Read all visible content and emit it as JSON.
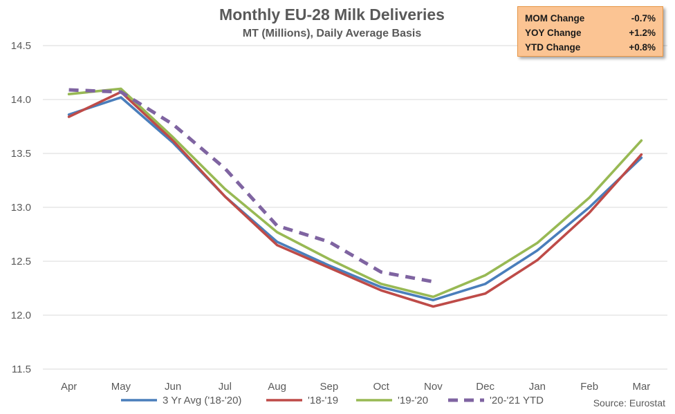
{
  "chart_data": {
    "type": "line",
    "title": "Monthly EU-28 Milk Deliveries",
    "subtitle": "MT (Millions), Daily Average Basis",
    "categories": [
      "Apr",
      "May",
      "Jun",
      "Jul",
      "Aug",
      "Sep",
      "Oct",
      "Nov",
      "Dec",
      "Jan",
      "Feb",
      "Mar"
    ],
    "ylim": [
      11.5,
      14.5
    ],
    "yticks": [
      "11.5",
      "12.0",
      "12.5",
      "13.0",
      "13.5",
      "14.0",
      "14.5"
    ],
    "grid": true,
    "legend_position": "bottom",
    "series": [
      {
        "name": "3 Yr Avg ('18-'20)",
        "color": "#4a7ebb",
        "dash": "solid",
        "values": [
          13.86,
          14.02,
          13.6,
          13.1,
          12.68,
          12.46,
          12.26,
          12.14,
          12.29,
          12.6,
          13.0,
          13.46
        ]
      },
      {
        "name": "'18-'19",
        "color": "#be4b48",
        "dash": "solid",
        "values": [
          13.84,
          14.07,
          13.62,
          13.1,
          12.65,
          12.44,
          12.23,
          12.08,
          12.2,
          12.51,
          12.95,
          13.49
        ]
      },
      {
        "name": "'19-'20",
        "color": "#98b954",
        "dash": "solid",
        "values": [
          14.05,
          14.1,
          13.65,
          13.17,
          12.77,
          12.52,
          12.29,
          12.17,
          12.37,
          12.67,
          13.09,
          13.62
        ]
      },
      {
        "name": "'20-'21 YTD",
        "color": "#7f64a1",
        "dash": "dashed",
        "values": [
          14.09,
          14.07,
          13.77,
          13.36,
          12.83,
          12.68,
          12.4,
          12.31,
          null,
          null,
          null,
          null
        ]
      }
    ]
  },
  "stats_box": {
    "rows": [
      {
        "label": "MOM Change",
        "value": "-0.7%"
      },
      {
        "label": "YOY Change",
        "value": "+1.2%"
      },
      {
        "label": "YTD Change",
        "value": "+0.8%"
      }
    ]
  },
  "source": "Source: Eurostat",
  "colors": {
    "stats_box_fill": "#fbc493",
    "stats_box_border": "#e69545",
    "grid": "#d9d9d9"
  }
}
